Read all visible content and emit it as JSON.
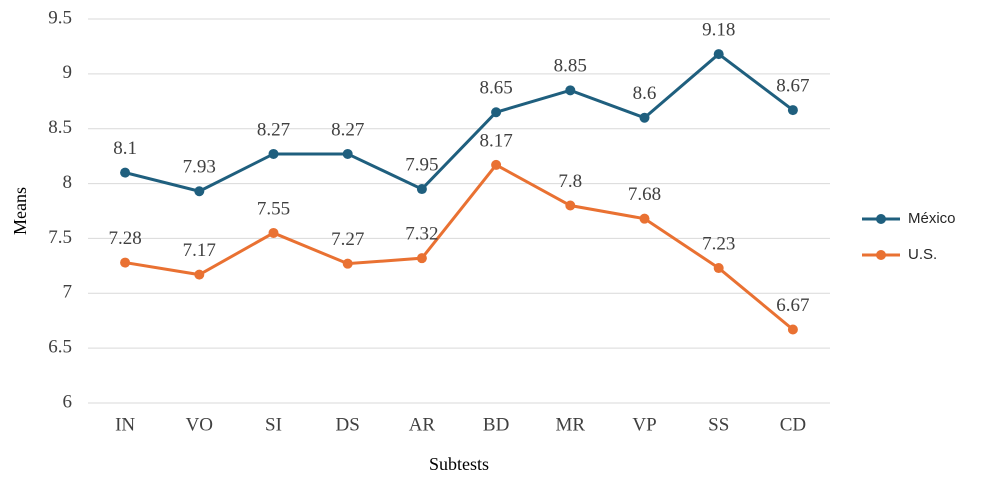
{
  "chart_data": {
    "type": "line",
    "x_label": "Subtests",
    "y_label": "Means",
    "categories": [
      "IN",
      "VO",
      "SI",
      "DS",
      "AR",
      "BD",
      "MR",
      "VP",
      "SS",
      "CD"
    ],
    "series": [
      {
        "name": "México",
        "color": "#1f5f7e",
        "values": [
          8.1,
          7.93,
          8.27,
          8.27,
          7.95,
          8.65,
          8.85,
          8.6,
          9.18,
          8.67
        ]
      },
      {
        "name": "U.S.",
        "color": "#e97132",
        "values": [
          7.28,
          7.17,
          7.55,
          7.27,
          7.32,
          8.17,
          7.8,
          7.68,
          7.23,
          6.67
        ]
      }
    ],
    "ylim": [
      6,
      9.5
    ],
    "yticks": [
      6,
      6.5,
      7,
      7.5,
      8,
      8.5,
      9,
      9.5
    ],
    "grid": true,
    "legend": "right",
    "data_labels": true
  }
}
